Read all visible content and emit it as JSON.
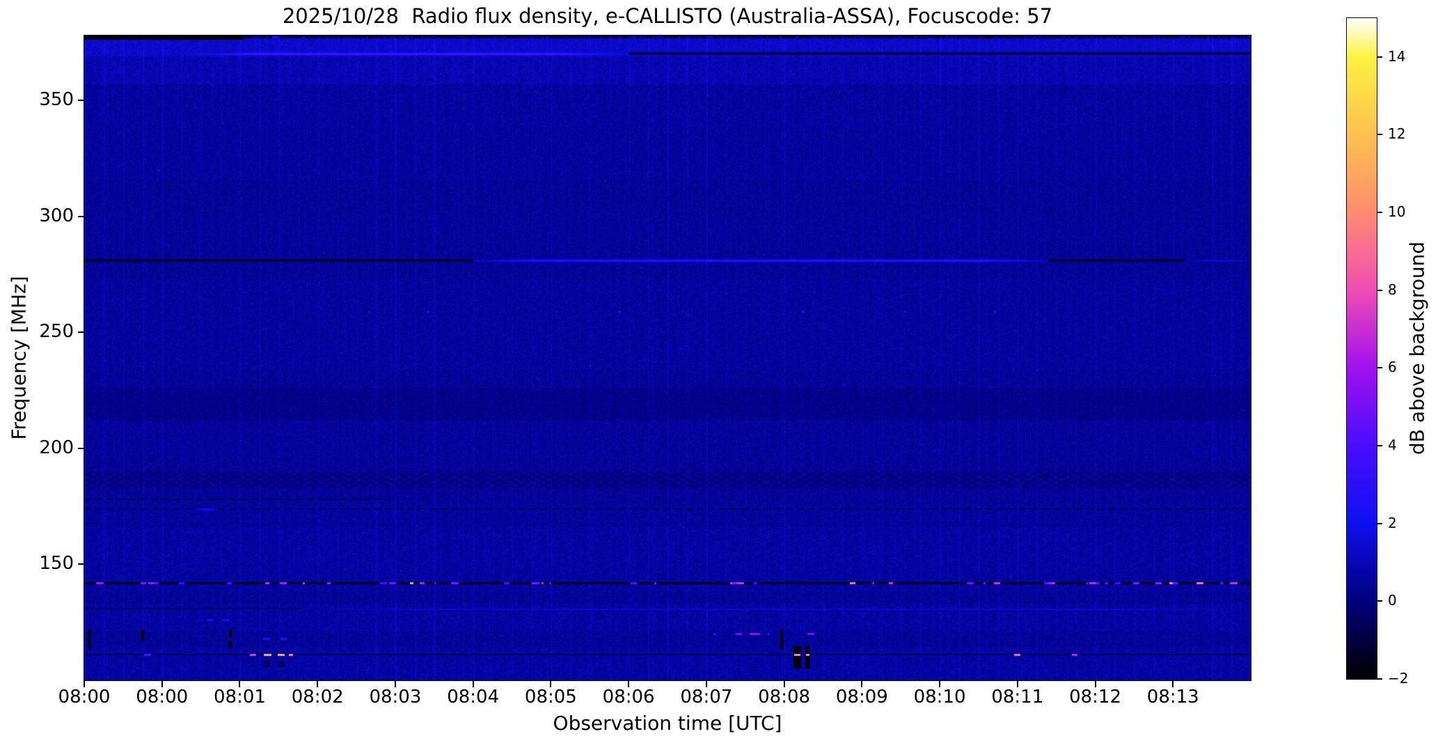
{
  "figure": {
    "background": "#ffffff"
  },
  "chart_data": {
    "type": "heatmap",
    "title": "2025/10/28  Radio flux density, e-CALLISTO (Australia-ASSA), Focuscode: 57",
    "xlabel": "Observation time [UTC]",
    "ylabel": "Frequency [MHz]",
    "x_ticks": [
      "08:00",
      "08:00",
      "08:01",
      "08:02",
      "08:03",
      "08:04",
      "08:05",
      "08:06",
      "08:07",
      "08:08",
      "08:09",
      "08:10",
      "08:11",
      "08:12",
      "08:13"
    ],
    "x_span_minutes": 15,
    "y_ticks": [
      350,
      300,
      250,
      200,
      150
    ],
    "ylim": [
      100,
      378
    ],
    "grid": false,
    "background_level_db": 0.45,
    "base_color": "#0a0a96",
    "colorbar": {
      "label": "dB above background",
      "ticks": [
        14,
        12,
        10,
        8,
        6,
        4,
        2,
        0,
        -2
      ],
      "vmin": -2,
      "vmax": 15,
      "stops": [
        {
          "v": -2,
          "c": "#000000"
        },
        {
          "v": 0,
          "c": "#00007d"
        },
        {
          "v": 2,
          "c": "#0f0fef"
        },
        {
          "v": 4,
          "c": "#4a0dff"
        },
        {
          "v": 6,
          "c": "#a211ee"
        },
        {
          "v": 8,
          "c": "#ef4db4"
        },
        {
          "v": 10,
          "c": "#ff8c70"
        },
        {
          "v": 12,
          "c": "#ffc04e"
        },
        {
          "v": 14,
          "c": "#fcf241"
        },
        {
          "v": 15,
          "c": "#ffffff"
        }
      ]
    },
    "texture_bands": [
      {
        "f0": 378,
        "f1": 369,
        "off": 0.9,
        "streak": 1.6
      },
      {
        "f0": 369,
        "f1": 357,
        "off": 0.45,
        "streak": 1.3
      },
      {
        "f0": 357,
        "f1": 338,
        "off": 0.15,
        "streak": 1.0
      },
      {
        "f0": 338,
        "f1": 316,
        "off": 0.1,
        "streak": 1.3
      },
      {
        "f0": 300,
        "f1": 288,
        "off": 0.05,
        "streak": 1.1
      },
      {
        "f0": 273,
        "f1": 234,
        "off": 0.08,
        "streak": 0.9,
        "hatch": true
      },
      {
        "f0": 226,
        "f1": 212,
        "off": -0.22,
        "streak": 0.7
      },
      {
        "f0": 212,
        "f1": 196,
        "off": 0.05,
        "streak": 1.0
      },
      {
        "f0": 190,
        "f1": 183,
        "checker": true
      },
      {
        "f0": 176,
        "f1": 168,
        "off": 0.1,
        "streak": 1.1
      },
      {
        "f0": 166,
        "f1": 147,
        "off": 0.15,
        "streak": 1.2,
        "hatch": true
      },
      {
        "f0": 147,
        "f1": 138,
        "off": 0.12,
        "streak": 1.0,
        "hatch": true
      },
      {
        "f0": 133,
        "f1": 121,
        "off": 0.18,
        "streak": 1.3
      },
      {
        "f0": 114,
        "f1": 100,
        "off": 0.2,
        "streak": 1.2
      }
    ],
    "features": [
      {
        "kind": "solid_black_top",
        "f0": 378,
        "f1": 376.4,
        "t0": 0,
        "t1": 2.05
      },
      {
        "kind": "speckled_black_top",
        "f0": 378,
        "f1": 377.0,
        "t0": 2.05,
        "t1": 15
      },
      {
        "kind": "bright_hline",
        "f": 370.2,
        "t0": 1.35,
        "t1": 7.0,
        "db": 3.6,
        "taper": 0.9,
        "glow": true
      },
      {
        "kind": "dark_hline",
        "f": 370.2,
        "t0": 7.0,
        "t1": 15,
        "db": -0.85,
        "thick": 4
      },
      {
        "kind": "dark_hline",
        "f": 281,
        "t0": 0,
        "t1": 5.0,
        "db": -1.2,
        "thick": 4
      },
      {
        "kind": "bright_hline",
        "f": 281,
        "t0": 5.0,
        "t1": 12.4,
        "db": 2.4,
        "taper": 0.8,
        "glow": true
      },
      {
        "kind": "dark_hline",
        "f": 281,
        "t0": 12.4,
        "t1": 14.15,
        "db": -1.1,
        "thick": 4
      },
      {
        "kind": "bright_hline",
        "f": 281,
        "t0": 14.15,
        "t1": 15,
        "db": 1.3,
        "taper": 0.3
      },
      {
        "kind": "dashed_dark_hline",
        "f": 178,
        "t0": 0,
        "t1": 3.95,
        "db": -0.9
      },
      {
        "kind": "dashed_dark_hline",
        "f": 174,
        "t0": 0,
        "t1": 15,
        "db": -0.8
      },
      {
        "kind": "bright_hline",
        "f": 174,
        "t0": 1.42,
        "t1": 1.73,
        "db": 1.9,
        "taper": 0.1
      },
      {
        "kind": "rfi_dash_line",
        "f": 142,
        "base_db": -1.7,
        "dash_count": 48,
        "dash_db_min": 4,
        "dash_db_max": 9.5
      },
      {
        "kind": "dark_hline",
        "f": 131,
        "t0": 0,
        "t1": 2.8,
        "db": -0.7,
        "thick": 2
      },
      {
        "kind": "bright_hline",
        "f": 131,
        "t0": 2.8,
        "t1": 15,
        "db": 1.4,
        "taper": 1.5,
        "thin": true
      },
      {
        "kind": "dark_hline",
        "f": 111,
        "t0": 0,
        "t1": 15,
        "db": -0.9,
        "thick": 2
      },
      {
        "kind": "bright_dash",
        "f": 111,
        "t": 0.77,
        "w": 0.09,
        "db": 5
      },
      {
        "kind": "bright_dash",
        "f": 111,
        "t": 2.13,
        "w": 0.08,
        "db": 9
      },
      {
        "kind": "bright_dash",
        "f": 111,
        "t": 2.31,
        "w": 0.1,
        "db": 14
      },
      {
        "kind": "bright_dash",
        "f": 111,
        "t": 2.49,
        "w": 0.09,
        "db": 13.5
      },
      {
        "kind": "bright_dash",
        "f": 111,
        "t": 2.63,
        "w": 0.05,
        "db": 12
      },
      {
        "kind": "bright_dash",
        "f": 111,
        "t": 11.96,
        "w": 0.08,
        "db": 11
      },
      {
        "kind": "bright_dash",
        "f": 111,
        "t": 12.7,
        "w": 0.07,
        "db": 8
      },
      {
        "kind": "bright_dash",
        "f": 120,
        "t": 8.38,
        "w": 0.08,
        "db": 6
      },
      {
        "kind": "bright_dash",
        "f": 120,
        "t": 8.56,
        "w": 0.13,
        "db": 6.5
      },
      {
        "kind": "bright_dash",
        "f": 120,
        "t": 9.3,
        "w": 0.09,
        "db": 6
      },
      {
        "kind": "bright_dash",
        "f": 120,
        "t": 8.09,
        "w": 0.04,
        "db": 3
      },
      {
        "kind": "bright_dash",
        "f": 120,
        "t": 8.78,
        "w": 0.04,
        "db": 3
      },
      {
        "kind": "bright_dash",
        "f": 118,
        "t": 2.3,
        "w": 0.09,
        "db": 3.3
      },
      {
        "kind": "bright_dash",
        "f": 118,
        "t": 2.52,
        "w": 0.09,
        "db": 3.3
      },
      {
        "kind": "bright_dash",
        "f": 126,
        "t": 1.58,
        "w": 0.08,
        "db": 2.8
      },
      {
        "kind": "bright_dash",
        "f": 126,
        "t": 1.78,
        "w": 0.08,
        "db": 2.8
      },
      {
        "kind": "bright_dash",
        "f": 377.3,
        "t": 2.42,
        "w": 0.09,
        "db": 3
      },
      {
        "kind": "black_vbar",
        "t": 0.05,
        "f0": 122,
        "f1": 113.5
      },
      {
        "kind": "black_vbar",
        "t": 0.73,
        "f0": 122,
        "f1": 117.5
      },
      {
        "kind": "black_vbar",
        "t": 1.86,
        "f0": 122,
        "f1": 118.5
      },
      {
        "kind": "black_vbar",
        "t": 1.86,
        "f0": 117,
        "f1": 114
      },
      {
        "kind": "black_vbar",
        "t": 8.95,
        "f0": 122,
        "f1": 113.5
      },
      {
        "kind": "black_block",
        "t": 9.12,
        "w": 0.1,
        "f0": 114.8,
        "f1": 105.5,
        "white_f": 111
      },
      {
        "kind": "black_block",
        "t": 9.27,
        "w": 0.06,
        "f0": 114.8,
        "f1": 105.5,
        "white_f": 111
      },
      {
        "kind": "dark_dots",
        "t": 2.31,
        "w": 0.09,
        "f0": 108.5,
        "f1": 106
      },
      {
        "kind": "dark_dots",
        "t": 2.49,
        "w": 0.09,
        "f0": 108.5,
        "f1": 106
      },
      {
        "kind": "speck",
        "f": 259,
        "t": 3.65,
        "db": 3.5
      },
      {
        "kind": "speck",
        "f": 259,
        "t": 4.41,
        "db": 6
      },
      {
        "kind": "speck",
        "f": 259,
        "t": 6.07,
        "db": 3.5
      },
      {
        "kind": "speck",
        "f": 259,
        "t": 6.87,
        "db": 6
      },
      {
        "kind": "speck",
        "f": 259,
        "t": 7.68,
        "db": 3.2
      },
      {
        "kind": "speck",
        "f": 259,
        "t": 9.24,
        "db": 6
      },
      {
        "kind": "speck",
        "f": 259,
        "t": 10.54,
        "db": 3.5
      },
      {
        "kind": "speck",
        "f": 259,
        "t": 11.7,
        "db": 5
      },
      {
        "kind": "speck",
        "f": 244,
        "t": 0.3,
        "db": 3.2
      },
      {
        "kind": "speck",
        "f": 320,
        "t": 0.95,
        "db": 5.5
      },
      {
        "kind": "speck",
        "f": 236,
        "t": 6.5,
        "db": 4
      }
    ]
  }
}
